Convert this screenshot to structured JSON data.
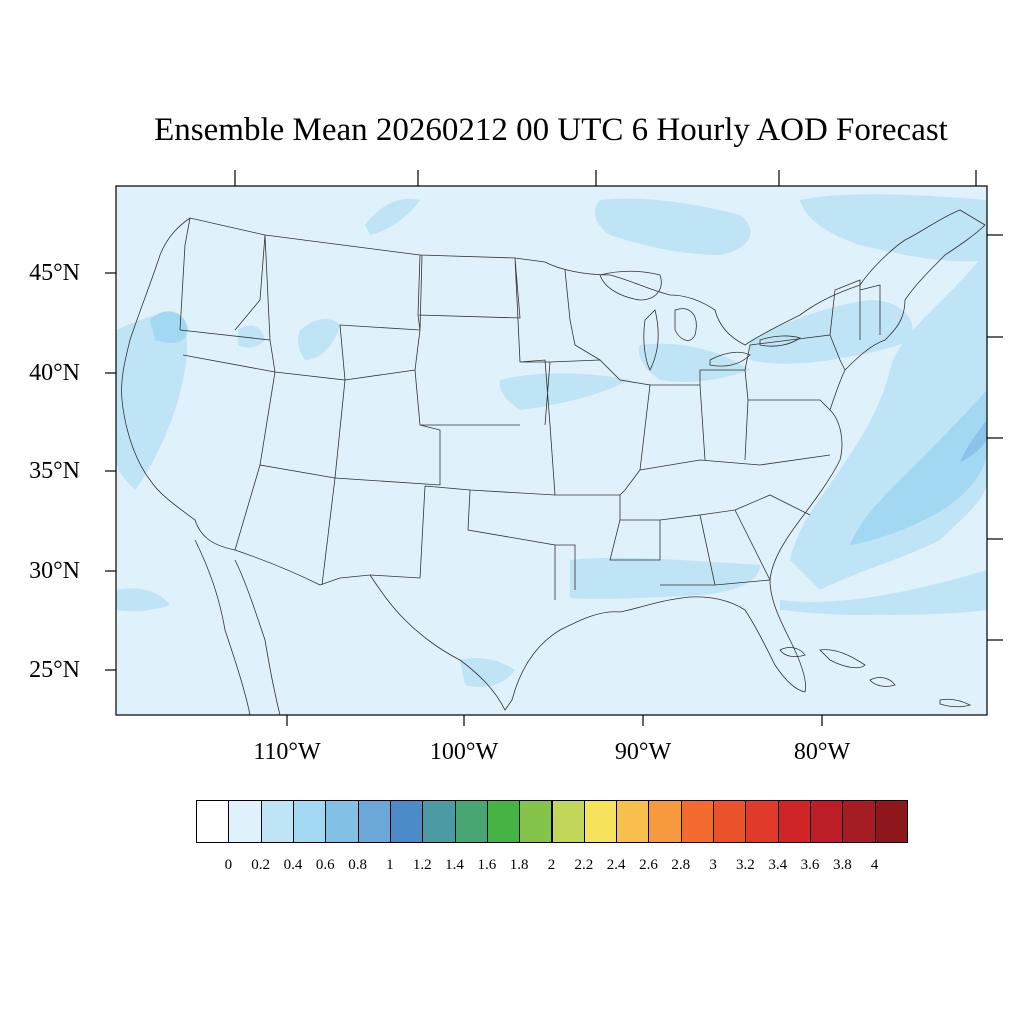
{
  "title": "Ensemble Mean 20260212 00 UTC 6 Hourly AOD Forecast",
  "map": {
    "lat_labels": [
      "45°N",
      "40°N",
      "35°N",
      "30°N",
      "25°N"
    ],
    "lon_labels": [
      "110°W",
      "100°W",
      "90°W",
      "80°W"
    ],
    "background_color": "#dff1fa",
    "shade_colors": [
      "#bfe4f6",
      "#a2d8f2",
      "#8bc4e8"
    ]
  },
  "colorbar": {
    "labels": [
      "0",
      "0.2",
      "0.4",
      "0.6",
      "0.8",
      "1",
      "1.2",
      "1.4",
      "1.6",
      "1.8",
      "2",
      "2.2",
      "2.4",
      "2.6",
      "2.8",
      "3",
      "3.2",
      "3.4",
      "3.6",
      "3.8",
      "4"
    ],
    "colors": [
      "#ffffff",
      "#dff1fa",
      "#bfe4f6",
      "#a2d8f2",
      "#82c0e5",
      "#6aa8da",
      "#4a8bc8",
      "#4b9ba4",
      "#48a574",
      "#46b445",
      "#85c44b",
      "#c2d659",
      "#f6e35c",
      "#f7bf4c",
      "#f79a3e",
      "#f46b2f",
      "#e9522b",
      "#df3a2a",
      "#d02427",
      "#bc1d26",
      "#a51c22",
      "#8e171c"
    ]
  }
}
